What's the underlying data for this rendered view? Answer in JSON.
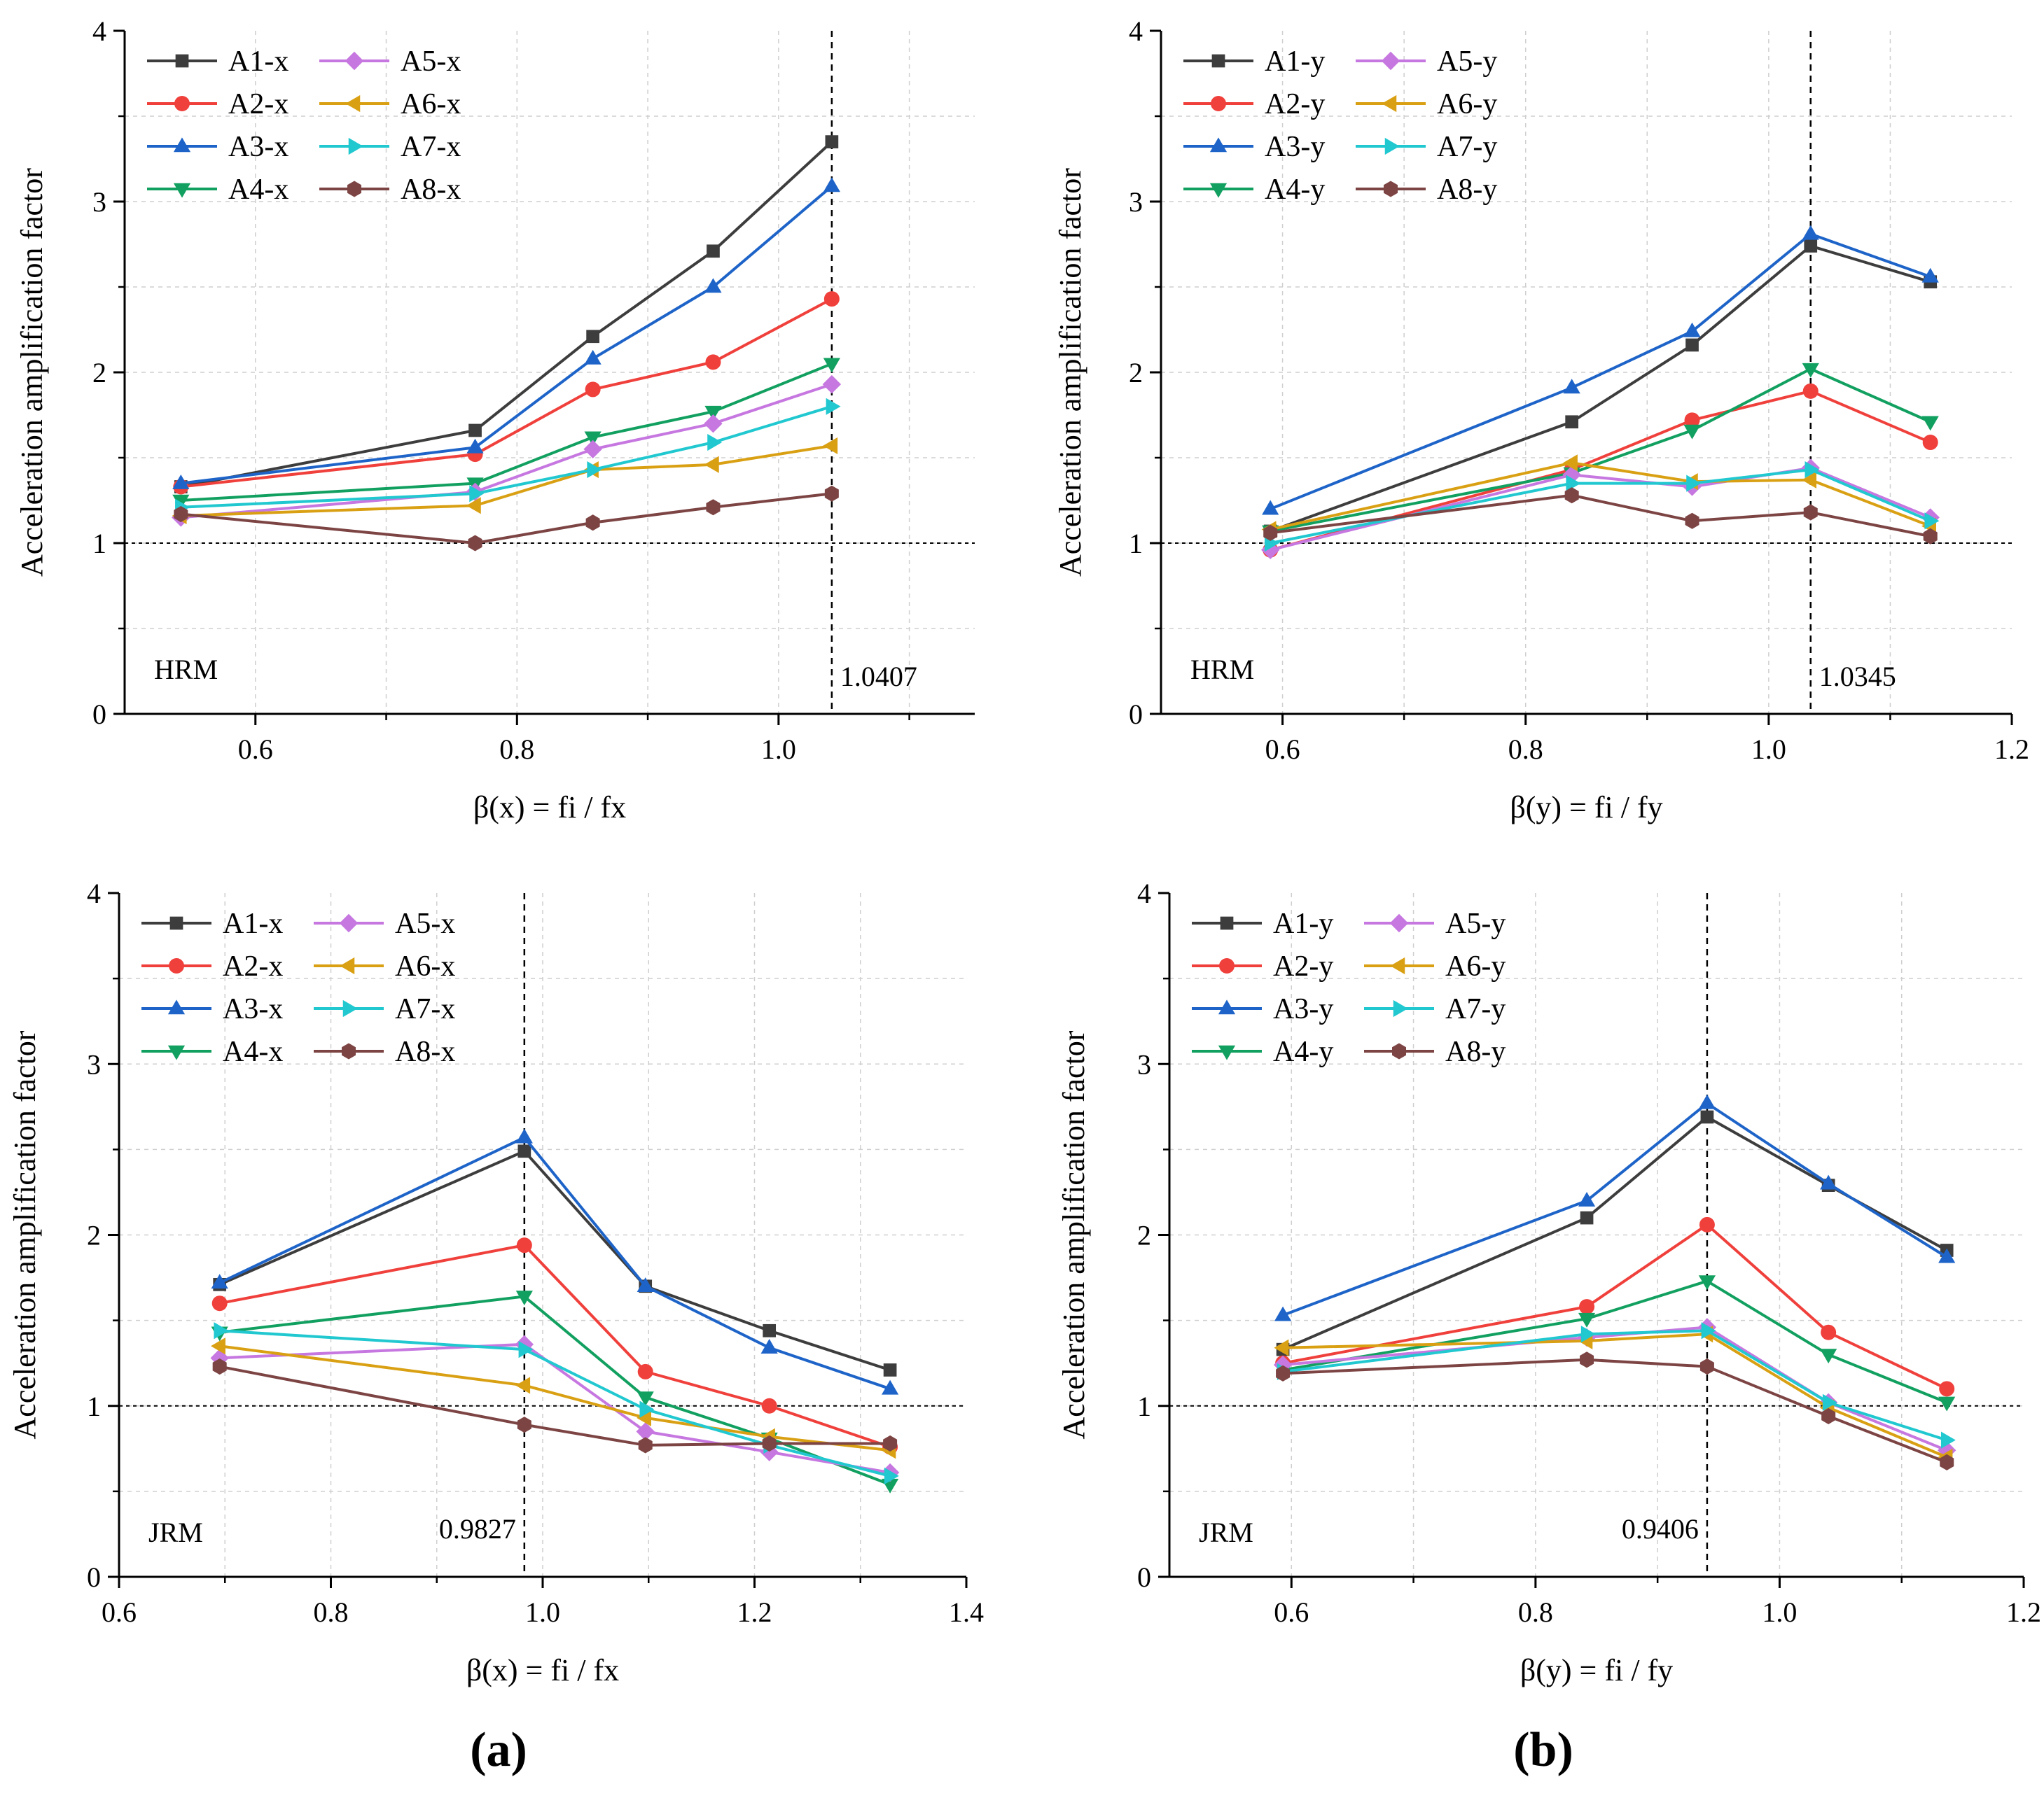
{
  "figure": {
    "panel_labels": [
      "(a)",
      "(b)"
    ],
    "colors": {
      "A1": "#3d3d3d",
      "A2": "#f0403c",
      "A3": "#1e64c8",
      "A4": "#12a060",
      "A5": "#c677e0",
      "A6": "#d9a013",
      "A7": "#21c8d0",
      "A8": "#7d4444"
    },
    "markers": {
      "A1": "square",
      "A2": "circle",
      "A3": "triangle-up",
      "A4": "triangle-down",
      "A5": "diamond",
      "A6": "triangle-left",
      "A7": "triangle-right",
      "A8": "hexagon"
    }
  },
  "chart_data": [
    {
      "id": "hrm-x",
      "type": "line",
      "method_label": "HRM",
      "xlabel": "β(x) = fi / fx",
      "ylabel": "Acceleration amplification factor",
      "xlim": [
        0.5,
        1.15
      ],
      "ylim": [
        0,
        4
      ],
      "xticks": [
        0.6,
        0.8,
        1.0
      ],
      "xtick_labels": [
        "0.6",
        "0.8",
        "1.0"
      ],
      "yticks": [
        0,
        1,
        2,
        3,
        4
      ],
      "ytick_labels": [
        "0",
        "1",
        "2",
        "3",
        "4"
      ],
      "grid": true,
      "reference_y": 1,
      "reference_x": 1.0407,
      "reference_x_label": "1.0407",
      "legend_position": "top-left",
      "x": [
        0.543,
        0.768,
        0.858,
        0.95,
        1.0407
      ],
      "series": [
        {
          "name": "A1-x",
          "key": "A1",
          "values": [
            1.33,
            1.66,
            2.21,
            2.71,
            3.35
          ]
        },
        {
          "name": "A2-x",
          "key": "A2",
          "values": [
            1.33,
            1.52,
            1.9,
            2.06,
            2.43
          ]
        },
        {
          "name": "A3-x",
          "key": "A3",
          "values": [
            1.35,
            1.56,
            2.08,
            2.5,
            3.09
          ]
        },
        {
          "name": "A4-x",
          "key": "A4",
          "values": [
            1.25,
            1.35,
            1.62,
            1.77,
            2.05
          ]
        },
        {
          "name": "A5-x",
          "key": "A5",
          "values": [
            1.15,
            1.3,
            1.55,
            1.7,
            1.93
          ]
        },
        {
          "name": "A6-x",
          "key": "A6",
          "values": [
            1.16,
            1.22,
            1.43,
            1.46,
            1.57
          ]
        },
        {
          "name": "A7-x",
          "key": "A7",
          "values": [
            1.21,
            1.29,
            1.43,
            1.59,
            1.8
          ]
        },
        {
          "name": "A8-x",
          "key": "A8",
          "values": [
            1.17,
            1.0,
            1.12,
            1.21,
            1.29
          ]
        }
      ]
    },
    {
      "id": "hrm-y",
      "type": "line",
      "method_label": "HRM",
      "xlabel": "β(y) = fi / fy",
      "ylabel": "Acceleration amplification factor",
      "xlim": [
        0.5,
        1.2
      ],
      "ylim": [
        0,
        4
      ],
      "xticks": [
        0.6,
        0.8,
        1.0,
        1.2
      ],
      "xtick_labels": [
        "0.6",
        "0.8",
        "1.0",
        "1.2"
      ],
      "yticks": [
        0,
        1,
        2,
        3,
        4
      ],
      "ytick_labels": [
        "0",
        "1",
        "2",
        "3",
        "4"
      ],
      "grid": true,
      "reference_y": 1,
      "reference_x": 1.0345,
      "reference_x_label": "1.0345",
      "legend_position": "top-left",
      "x": [
        0.59,
        0.838,
        0.937,
        1.0345,
        1.133
      ],
      "series": [
        {
          "name": "A1-y",
          "key": "A1",
          "values": [
            1.07,
            1.71,
            2.16,
            2.74,
            2.53
          ]
        },
        {
          "name": "A2-y",
          "key": "A2",
          "values": [
            0.96,
            1.43,
            1.72,
            1.89,
            1.59
          ]
        },
        {
          "name": "A3-y",
          "key": "A3",
          "values": [
            1.2,
            1.91,
            2.24,
            2.81,
            2.56
          ]
        },
        {
          "name": "A4-y",
          "key": "A4",
          "values": [
            1.07,
            1.41,
            1.66,
            2.02,
            1.71
          ]
        },
        {
          "name": "A5-y",
          "key": "A5",
          "values": [
            0.96,
            1.4,
            1.33,
            1.44,
            1.15
          ]
        },
        {
          "name": "A6-y",
          "key": "A6",
          "values": [
            1.08,
            1.47,
            1.36,
            1.37,
            1.1
          ]
        },
        {
          "name": "A7-y",
          "key": "A7",
          "values": [
            1.0,
            1.35,
            1.35,
            1.43,
            1.13
          ]
        },
        {
          "name": "A8-y",
          "key": "A8",
          "values": [
            1.06,
            1.28,
            1.13,
            1.18,
            1.04
          ]
        }
      ]
    },
    {
      "id": "jrm-x",
      "type": "line",
      "method_label": "JRM",
      "xlabel": "β(x) = fi / fx",
      "ylabel": "Acceleration amplification factor",
      "xlim": [
        0.6,
        1.4
      ],
      "ylim": [
        0,
        4
      ],
      "xticks": [
        0.6,
        0.8,
        1.0,
        1.2,
        1.4
      ],
      "xtick_labels": [
        "0.6",
        "0.8",
        "1.0",
        "1.2",
        "1.4"
      ],
      "yticks": [
        0,
        1,
        2,
        3,
        4
      ],
      "ytick_labels": [
        "0",
        "1",
        "2",
        "3",
        "4"
      ],
      "grid": true,
      "reference_y": 1,
      "reference_x": 0.9827,
      "reference_x_label": "0.9827",
      "legend_position": "top-left",
      "x": [
        0.695,
        0.9827,
        1.097,
        1.214,
        1.328
      ],
      "series": [
        {
          "name": "A1-x",
          "key": "A1",
          "values": [
            1.71,
            2.49,
            1.7,
            1.44,
            1.21
          ]
        },
        {
          "name": "A2-x",
          "key": "A2",
          "values": [
            1.6,
            1.94,
            1.2,
            1.0,
            0.76
          ]
        },
        {
          "name": "A3-x",
          "key": "A3",
          "values": [
            1.72,
            2.57,
            1.7,
            1.34,
            1.1
          ]
        },
        {
          "name": "A4-x",
          "key": "A4",
          "values": [
            1.43,
            1.64,
            1.05,
            0.81,
            0.54
          ]
        },
        {
          "name": "A5-x",
          "key": "A5",
          "values": [
            1.28,
            1.36,
            0.85,
            0.73,
            0.61
          ]
        },
        {
          "name": "A6-x",
          "key": "A6",
          "values": [
            1.35,
            1.12,
            0.93,
            0.82,
            0.74
          ]
        },
        {
          "name": "A7-x",
          "key": "A7",
          "values": [
            1.44,
            1.33,
            0.98,
            0.77,
            0.59
          ]
        },
        {
          "name": "A8-x",
          "key": "A8",
          "values": [
            1.23,
            0.89,
            0.77,
            0.78,
            0.78
          ]
        }
      ]
    },
    {
      "id": "jrm-y",
      "type": "line",
      "method_label": "JRM",
      "xlabel": "β(y) = fi / fy",
      "ylabel": "Acceleration amplification factor",
      "xlim": [
        0.5,
        1.2
      ],
      "ylim": [
        0,
        4
      ],
      "xticks": [
        0.6,
        0.8,
        1.0,
        1.2
      ],
      "xtick_labels": [
        "0.6",
        "0.8",
        "1.0",
        "1.2"
      ],
      "yticks": [
        0,
        1,
        2,
        3,
        4
      ],
      "ytick_labels": [
        "0",
        "1",
        "2",
        "3",
        "4"
      ],
      "grid": true,
      "reference_y": 1,
      "reference_x": 0.9406,
      "reference_x_label": "0.9406",
      "legend_position": "top-left",
      "x": [
        0.593,
        0.842,
        0.9406,
        1.04,
        1.137
      ],
      "series": [
        {
          "name": "A1-y",
          "key": "A1",
          "values": [
            1.33,
            2.1,
            2.69,
            2.29,
            1.91
          ]
        },
        {
          "name": "A2-y",
          "key": "A2",
          "values": [
            1.25,
            1.58,
            2.06,
            1.43,
            1.1
          ]
        },
        {
          "name": "A3-y",
          "key": "A3",
          "values": [
            1.53,
            2.2,
            2.77,
            2.3,
            1.87
          ]
        },
        {
          "name": "A4-y",
          "key": "A4",
          "values": [
            1.21,
            1.51,
            1.73,
            1.3,
            1.02
          ]
        },
        {
          "name": "A5-y",
          "key": "A5",
          "values": [
            1.24,
            1.4,
            1.46,
            1.02,
            0.74
          ]
        },
        {
          "name": "A6-y",
          "key": "A6",
          "values": [
            1.34,
            1.38,
            1.42,
            0.99,
            0.7
          ]
        },
        {
          "name": "A7-y",
          "key": "A7",
          "values": [
            1.2,
            1.42,
            1.44,
            1.02,
            0.8
          ]
        },
        {
          "name": "A8-y",
          "key": "A8",
          "values": [
            1.19,
            1.27,
            1.23,
            0.94,
            0.67
          ]
        }
      ]
    }
  ]
}
